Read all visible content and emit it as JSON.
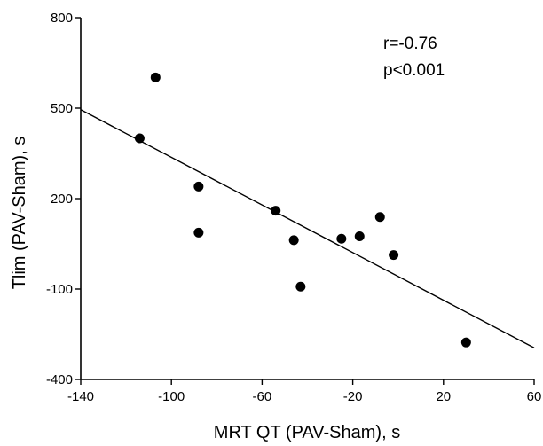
{
  "chart_data": {
    "type": "scatter",
    "title": "",
    "xlabel": "MRT QT (PAV-Sham), s",
    "ylabel": "Tlim (PAV-Sham), s",
    "xlim": [
      -140,
      60
    ],
    "ylim": [
      -400,
      800
    ],
    "x_ticks": [
      -140,
      -100,
      -60,
      -20,
      20,
      60
    ],
    "y_ticks": [
      -400,
      -100,
      200,
      500,
      800
    ],
    "grid": false,
    "annotations": [
      "r=-0.76",
      "p<0.001"
    ],
    "points": [
      {
        "x": -107,
        "y": 602
      },
      {
        "x": -114,
        "y": 400
      },
      {
        "x": -88,
        "y": 240
      },
      {
        "x": -88,
        "y": 87
      },
      {
        "x": -54,
        "y": 160
      },
      {
        "x": -46,
        "y": 62
      },
      {
        "x": -43,
        "y": -92
      },
      {
        "x": -25,
        "y": 67
      },
      {
        "x": -17,
        "y": 75
      },
      {
        "x": -8,
        "y": 139
      },
      {
        "x": -2,
        "y": 13
      },
      {
        "x": 30,
        "y": -277
      }
    ],
    "fit_line": {
      "x": [
        -140,
        60
      ],
      "y": [
        495,
        -295
      ]
    }
  }
}
